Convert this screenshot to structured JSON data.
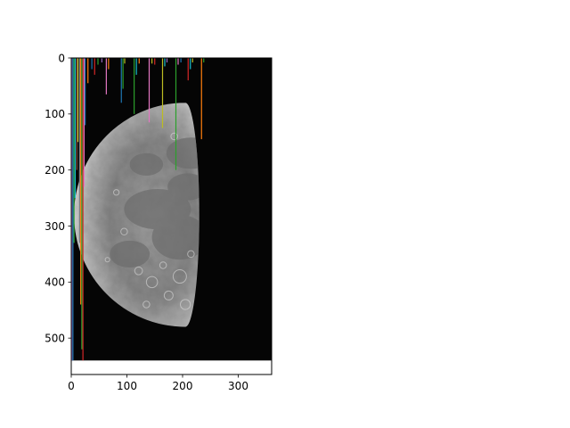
{
  "chart_data": {
    "type": "heatmap",
    "image_subject": "moon-photo",
    "xlim": [
      0,
      360
    ],
    "ylim": [
      565,
      0
    ],
    "image_extent": {
      "x": [
        0,
        360
      ],
      "y": [
        0,
        540
      ]
    },
    "x_ticks": [
      0,
      100,
      200,
      300
    ],
    "y_ticks": [
      0,
      100,
      200,
      300,
      400,
      500
    ],
    "x_tick_labels": [
      "0",
      "100",
      "200",
      "300"
    ],
    "y_tick_labels": [
      "0",
      "100",
      "200",
      "300",
      "400",
      "500"
    ],
    "moon": {
      "center": [
        205,
        280
      ],
      "radius": 200,
      "terminator_center": [
        205,
        280
      ],
      "terminator_rx": 25
    },
    "overlay_lines": [
      {
        "x": 1,
        "y_end": 540,
        "color": "#9467bd"
      },
      {
        "x": 3,
        "y_end": 540,
        "color": "#1f77b4"
      },
      {
        "x": 5,
        "y_end": 330,
        "color": "#2ca02c"
      },
      {
        "x": 7,
        "y_end": 250,
        "color": "#17becf"
      },
      {
        "x": 10,
        "y_end": 200,
        "color": "#8c564b"
      },
      {
        "x": 12,
        "y_end": 150,
        "color": "#bcbd22"
      },
      {
        "x": 15,
        "y_end": 330,
        "color": "#7f7f7f"
      },
      {
        "x": 17,
        "y_end": 440,
        "color": "#ff7f0e"
      },
      {
        "x": 19,
        "y_end": 520,
        "color": "#2ca02c"
      },
      {
        "x": 21,
        "y_end": 540,
        "color": "#d62728"
      },
      {
        "x": 23,
        "y_end": 230,
        "color": "#e377c2"
      },
      {
        "x": 25,
        "y_end": 120,
        "color": "#1f77b4"
      },
      {
        "x": 30,
        "y_end": 45,
        "color": "#ff7f0e"
      },
      {
        "x": 37,
        "y_end": 20,
        "color": "#1f77b4"
      },
      {
        "x": 42,
        "y_end": 30,
        "color": "#d62728"
      },
      {
        "x": 48,
        "y_end": 12,
        "color": "#2ca02c"
      },
      {
        "x": 55,
        "y_end": 8,
        "color": "#9467bd"
      },
      {
        "x": 63,
        "y_end": 65,
        "color": "#e377c2"
      },
      {
        "x": 67,
        "y_end": 20,
        "color": "#ff7f0e"
      },
      {
        "x": 90,
        "y_end": 80,
        "color": "#1f77b4"
      },
      {
        "x": 93,
        "y_end": 55,
        "color": "#2ca02c"
      },
      {
        "x": 96,
        "y_end": 10,
        "color": "#bcbd22"
      },
      {
        "x": 113,
        "y_end": 100,
        "color": "#2ca02c"
      },
      {
        "x": 117,
        "y_end": 30,
        "color": "#17becf"
      },
      {
        "x": 122,
        "y_end": 10,
        "color": "#ff7f0e"
      },
      {
        "x": 140,
        "y_end": 115,
        "color": "#e377c2"
      },
      {
        "x": 145,
        "y_end": 10,
        "color": "#bcbd22"
      },
      {
        "x": 150,
        "y_end": 12,
        "color": "#d62728"
      },
      {
        "x": 164,
        "y_end": 125,
        "color": "#bcbd22"
      },
      {
        "x": 168,
        "y_end": 15,
        "color": "#17becf"
      },
      {
        "x": 172,
        "y_end": 8,
        "color": "#9467bd"
      },
      {
        "x": 188,
        "y_end": 200,
        "color": "#2ca02c"
      },
      {
        "x": 192,
        "y_end": 12,
        "color": "#e377c2"
      },
      {
        "x": 197,
        "y_end": 8,
        "color": "#1f77b4"
      },
      {
        "x": 210,
        "y_end": 40,
        "color": "#d62728"
      },
      {
        "x": 214,
        "y_end": 20,
        "color": "#17becf"
      },
      {
        "x": 218,
        "y_end": 8,
        "color": "#bcbd22"
      },
      {
        "x": 234,
        "y_end": 145,
        "color": "#ff7f0e"
      },
      {
        "x": 238,
        "y_end": 8,
        "color": "#2ca02c"
      }
    ]
  }
}
